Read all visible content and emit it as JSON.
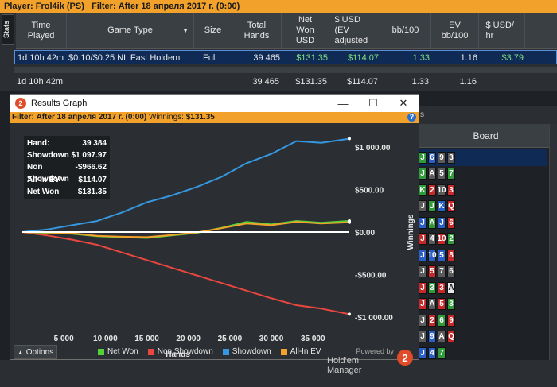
{
  "topbar": {
    "player_label": "Player:",
    "player_value": "Frol4ik (PS)",
    "filter_label": "Filter:",
    "filter_value": "After 18 апреля 2017 г. (0:00)"
  },
  "stats_tab": "Stats",
  "table": {
    "headers": [
      "Time Played",
      "Game Type",
      "Size",
      "Total Hands",
      "Net Won USD",
      "$ USD (EV adjusted",
      "bb/100",
      "EV bb/100",
      "$ USD/ hr"
    ],
    "selected_row": [
      "1d 10h 42m",
      "$0.10/$0.25 NL Fast Holdem",
      "Full",
      "39 465",
      "$131.35",
      "$114.07",
      "1.33",
      "1.16",
      "$3.79"
    ],
    "total_row": [
      "1d 10h 42m",
      "",
      "",
      "39 465",
      "$131.35",
      "$114.07",
      "1.33",
      "1.16",
      ""
    ]
  },
  "board": {
    "header": "Board",
    "partial_tab": "s"
  },
  "board_rows": [
    [
      {
        "t": "J",
        "c": "c"
      },
      {
        "t": "6",
        "c": "d"
      },
      {
        "t": "9",
        "c": "s"
      },
      {
        "t": "3",
        "c": "s"
      }
    ],
    [
      {
        "t": "J",
        "c": "c"
      },
      {
        "t": "A",
        "c": "s"
      },
      {
        "t": "5",
        "c": "s"
      },
      {
        "t": "7",
        "c": "c"
      }
    ],
    [
      {
        "t": "K",
        "c": "c"
      },
      {
        "t": "2",
        "c": "h"
      },
      {
        "t": "10",
        "c": "s"
      },
      {
        "t": "3",
        "c": "h"
      }
    ],
    [
      {
        "t": "J",
        "c": "s"
      },
      {
        "t": "J",
        "c": "c"
      },
      {
        "t": "K",
        "c": "d"
      },
      {
        "t": "Q",
        "c": "h"
      }
    ],
    [
      {
        "t": "J",
        "c": "d"
      },
      {
        "t": "A",
        "c": "c"
      },
      {
        "t": "J",
        "c": "d"
      },
      {
        "t": "6",
        "c": "h"
      }
    ],
    [
      {
        "t": "J",
        "c": "h"
      },
      {
        "t": "4",
        "c": "s"
      },
      {
        "t": "10",
        "c": "h"
      },
      {
        "t": "2",
        "c": "c"
      }
    ],
    [
      {
        "t": "J",
        "c": "d"
      },
      {
        "t": "10",
        "c": "d"
      },
      {
        "t": "5",
        "c": "d"
      },
      {
        "t": "8",
        "c": "h"
      }
    ],
    [
      {
        "t": "J",
        "c": "s"
      },
      {
        "t": "5",
        "c": "h"
      },
      {
        "t": "7",
        "c": "s"
      },
      {
        "t": "6",
        "c": "s"
      }
    ],
    [
      {
        "t": "J",
        "c": "h"
      },
      {
        "t": "3",
        "c": "c"
      },
      {
        "t": "3",
        "c": "h"
      },
      {
        "t": "A",
        "c": "w"
      }
    ],
    [
      {
        "t": "J",
        "c": "h"
      },
      {
        "t": "A",
        "c": "s"
      },
      {
        "t": "5",
        "c": "h"
      },
      {
        "t": "3",
        "c": "c"
      }
    ],
    [
      {
        "t": "J",
        "c": "s"
      },
      {
        "t": "2",
        "c": "h"
      },
      {
        "t": "6",
        "c": "c"
      },
      {
        "t": "9",
        "c": "h"
      }
    ],
    [
      {
        "t": "J",
        "c": "s"
      },
      {
        "t": "9",
        "c": "d"
      },
      {
        "t": "A",
        "c": "s"
      },
      {
        "t": "Q",
        "c": "h"
      }
    ],
    [
      {
        "t": "J",
        "c": "d"
      },
      {
        "t": "4",
        "c": "d"
      },
      {
        "t": "7",
        "c": "c"
      }
    ]
  ],
  "window": {
    "title": "Results Graph",
    "minimize": "—",
    "maximize": "☐",
    "close": "✕",
    "filter_label": "Filter:",
    "filter_value": "After 18 апреля 2017 г. (0:00)",
    "winnings_label": "Winnings:",
    "winnings_value": "$131.35",
    "help": "?"
  },
  "stats_box": [
    {
      "label": "Hand:",
      "value": "39 384"
    },
    {
      "label": "Showdown",
      "value": "$1 097.97"
    },
    {
      "label": "Non Showdown",
      "value": "-$966.62"
    },
    {
      "label": "All-In EV",
      "value": "$114.07"
    },
    {
      "label": "Net Won",
      "value": "$131.35"
    }
  ],
  "options": {
    "label": "Options",
    "icon": "caret-up-icon"
  },
  "brand": {
    "powered": "Powered by",
    "name": "Hold'em Manager",
    "logo": "2"
  },
  "colors": {
    "net_won": "#54d13a",
    "non_showdown": "#e8463f",
    "showdown": "#3597e0",
    "allin_ev": "#f2a22a",
    "zero_line": "#ffffff",
    "accent": "#f2a22a"
  },
  "chart_data": {
    "type": "line",
    "xlabel": "Hands",
    "ylabel": "Winnings",
    "x_ticks": [
      "5 000",
      "10 000",
      "15 000",
      "20 000",
      "25 000",
      "30 000",
      "35 000"
    ],
    "x_tick_values": [
      5000,
      10000,
      15000,
      20000,
      25000,
      30000,
      35000
    ],
    "y_ticks": [
      "$1 000.00",
      "$500.00",
      "$0.00",
      "-$500.00",
      "-$1 000.00"
    ],
    "y_tick_values": [
      1000,
      500,
      0,
      -500,
      -1000
    ],
    "xlim": [
      0,
      39384
    ],
    "ylim": [
      -1150,
      1150
    ],
    "legend": [
      "Net Won",
      "Non Showdown",
      "Showdown",
      "All-In EV"
    ],
    "series": [
      {
        "name": "Showdown",
        "x": [
          0,
          3000,
          6000,
          9000,
          12000,
          15000,
          18000,
          21000,
          24000,
          27000,
          30000,
          33000,
          36000,
          39384
        ],
        "values": [
          0,
          30,
          80,
          130,
          230,
          350,
          430,
          530,
          650,
          810,
          920,
          1070,
          1050,
          1098
        ]
      },
      {
        "name": "Non Showdown",
        "x": [
          0,
          3000,
          6000,
          9000,
          12000,
          15000,
          18000,
          21000,
          24000,
          27000,
          30000,
          33000,
          36000,
          39384
        ],
        "values": [
          0,
          -40,
          -90,
          -150,
          -240,
          -330,
          -420,
          -510,
          -600,
          -690,
          -780,
          -860,
          -900,
          -967
        ]
      },
      {
        "name": "Net Won",
        "x": [
          0,
          3000,
          6000,
          9000,
          12000,
          15000,
          18000,
          21000,
          24000,
          27000,
          30000,
          33000,
          36000,
          39384
        ],
        "values": [
          0,
          -10,
          -20,
          -50,
          -60,
          -70,
          -40,
          -10,
          50,
          120,
          90,
          130,
          110,
          131
        ]
      },
      {
        "name": "All-In EV",
        "x": [
          0,
          3000,
          6000,
          9000,
          12000,
          15000,
          18000,
          21000,
          24000,
          27000,
          30000,
          33000,
          36000,
          39384
        ],
        "values": [
          0,
          -5,
          -15,
          -45,
          -55,
          -60,
          -35,
          -5,
          45,
          100,
          80,
          120,
          100,
          114
        ]
      }
    ]
  }
}
